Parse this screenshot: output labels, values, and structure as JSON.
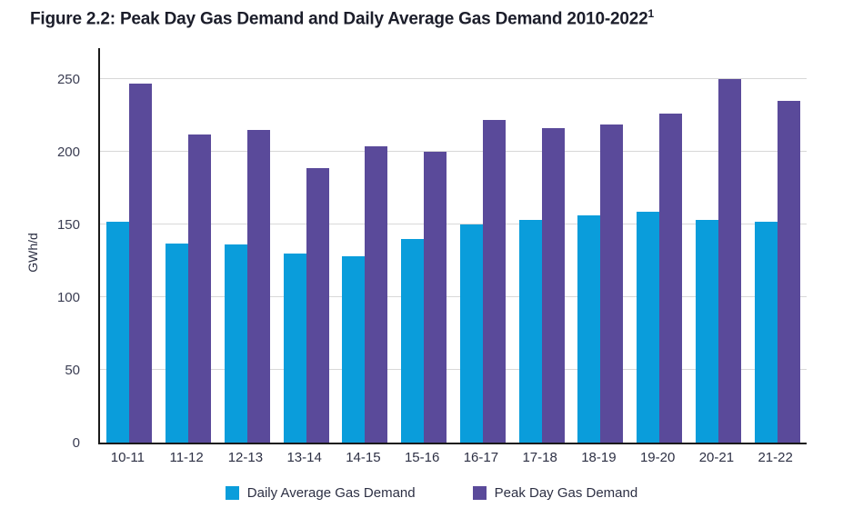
{
  "figure": {
    "title": "Figure 2.2: Peak Day Gas Demand and Daily Average Gas Demand 2010-2022",
    "footnote_marker": "1"
  },
  "chart_data": {
    "type": "bar",
    "title": "Figure 2.2: Peak Day Gas Demand and Daily Average Gas Demand 2010-2022",
    "categories": [
      "10-11",
      "11-12",
      "12-13",
      "13-14",
      "14-15",
      "15-16",
      "16-17",
      "17-18",
      "18-19",
      "19-20",
      "20-21",
      "21-22"
    ],
    "series": [
      {
        "name": "Daily Average Gas Demand",
        "color": "#0A9DDB",
        "values": [
          152,
          137,
          136,
          130,
          128,
          140,
          150,
          153,
          156,
          159,
          153,
          152
        ]
      },
      {
        "name": "Peak Day Gas Demand",
        "color": "#5A4A9A",
        "values": [
          247,
          212,
          215,
          189,
          204,
          200,
          222,
          216,
          219,
          226,
          250,
          235
        ]
      }
    ],
    "xlabel": "",
    "ylabel": "GWh/d",
    "yticks": [
      0,
      50,
      100,
      150,
      200,
      250
    ],
    "ylim": [
      0,
      271
    ],
    "grid": true,
    "legend_position": "bottom",
    "colors": {
      "gridline": "#d8d8d8",
      "axis": "#1a1a1a",
      "tick_text": "#3a3d52",
      "label_text": "#2d3044",
      "title_text": "#1b1d2a"
    }
  }
}
